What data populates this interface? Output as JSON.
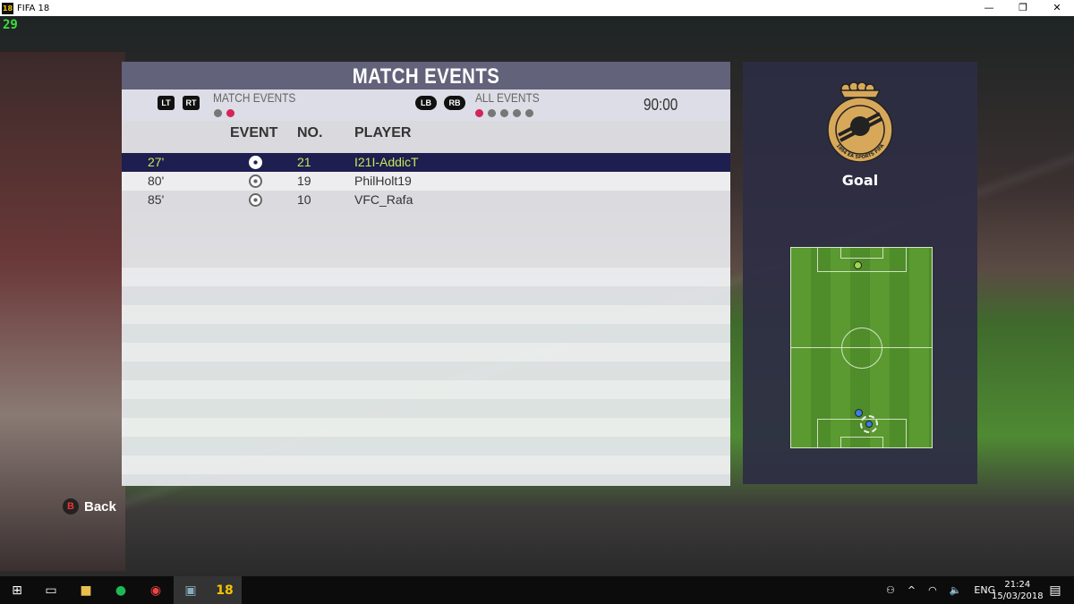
{
  "window": {
    "app_icon": "18",
    "title": "FIFA 18",
    "minimize": "—",
    "restore": "❐",
    "close": "✕"
  },
  "fps": "29",
  "panel": {
    "title": "MATCH EVENTS",
    "left_buttons": [
      "LT",
      "RT"
    ],
    "filter_label": "MATCH EVENTS",
    "filter_dots": {
      "count": 2,
      "active": 2
    },
    "right_buttons": [
      "LB",
      "RB"
    ],
    "event_label": "ALL EVENTS",
    "event_dots": {
      "count": 5,
      "active": 1
    },
    "clock": "90:00",
    "columns": {
      "event": "EVENT",
      "no": "NO.",
      "player": "PLAYER"
    },
    "rows": [
      {
        "time": "27'",
        "event": "goal-ball-icon",
        "no": "21",
        "player": "I21I-AddicT",
        "selected": true
      },
      {
        "time": "80'",
        "event": "goal-ball-icon",
        "no": "19",
        "player": "PhilHolt19",
        "selected": false
      },
      {
        "time": "85'",
        "event": "goal-ball-icon",
        "no": "10",
        "player": "VFC_Rafa",
        "selected": false
      }
    ]
  },
  "detail": {
    "crest_text": "1994 EA SPORTS FIFA",
    "event_type": "Goal"
  },
  "back": {
    "key": "B",
    "label": "Back"
  },
  "taskbar": {
    "lang": "ENG",
    "time": "21:24",
    "date": "15/03/2018",
    "fifa_icon": "18"
  },
  "colors": {
    "accent": "#d4245a",
    "selected_row": "#1e1e50",
    "selected_text": "#c8e85a"
  }
}
